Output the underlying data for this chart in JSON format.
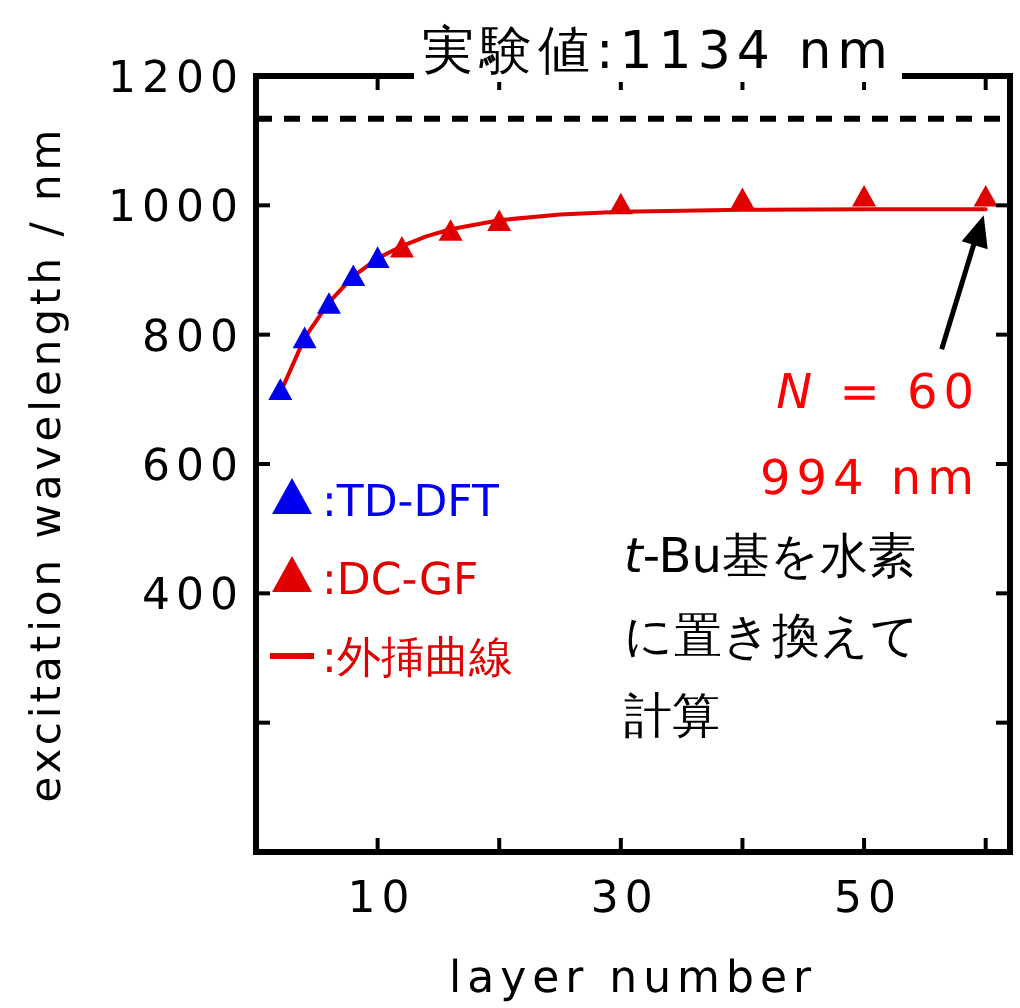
{
  "chart_data": {
    "type": "scatter",
    "xlabel": "layer number",
    "ylabel": "excitation wavelength / nm",
    "xlim": [
      0,
      62
    ],
    "ylim": [
      0,
      1200
    ],
    "xticks": [
      10,
      {
        "value": 20,
        "label": null
      },
      30,
      {
        "value": 40,
        "label": null
      },
      50,
      {
        "value": 60,
        "label": null
      }
    ],
    "yticks": [
      {
        "value": 200,
        "label": null
      },
      400,
      600,
      800,
      1000,
      1200
    ],
    "marker": "triangle",
    "legend": "left",
    "series": [
      {
        "name": ":TD-DFT",
        "color": "#0000ee",
        "x": [
          2,
          4,
          6,
          8,
          10
        ],
        "values": [
          714,
          794,
          847,
          890,
          918
        ]
      },
      {
        "name": ":DC-GF",
        "color": "#e00000",
        "x": [
          12,
          16,
          20,
          30,
          40,
          50,
          60
        ],
        "values": [
          934,
          960,
          975,
          1001,
          1009,
          1013,
          1013
        ]
      },
      {
        "name": ":外挿曲線",
        "type": "line",
        "marker": "none",
        "color": "#e00000",
        "x": [
          2,
          4,
          6,
          8,
          10,
          12,
          14,
          16,
          20,
          25,
          30,
          40,
          50,
          60
        ],
        "values": [
          710,
          795,
          850,
          890,
          918,
          937,
          952,
          963,
          977,
          986,
          990,
          993,
          994,
          994
        ]
      }
    ],
    "ref_lines": [
      {
        "axis": "y",
        "value": 1134,
        "label": "実験値:1134 nm",
        "line_style": "dashed",
        "color": "#000000"
      }
    ],
    "annotations": [
      {
        "text": "*N* = 60",
        "x": 60,
        "y": 994
      },
      "994 nm",
      "*t*-Bu基を水素に置き換えて計算"
    ]
  }
}
